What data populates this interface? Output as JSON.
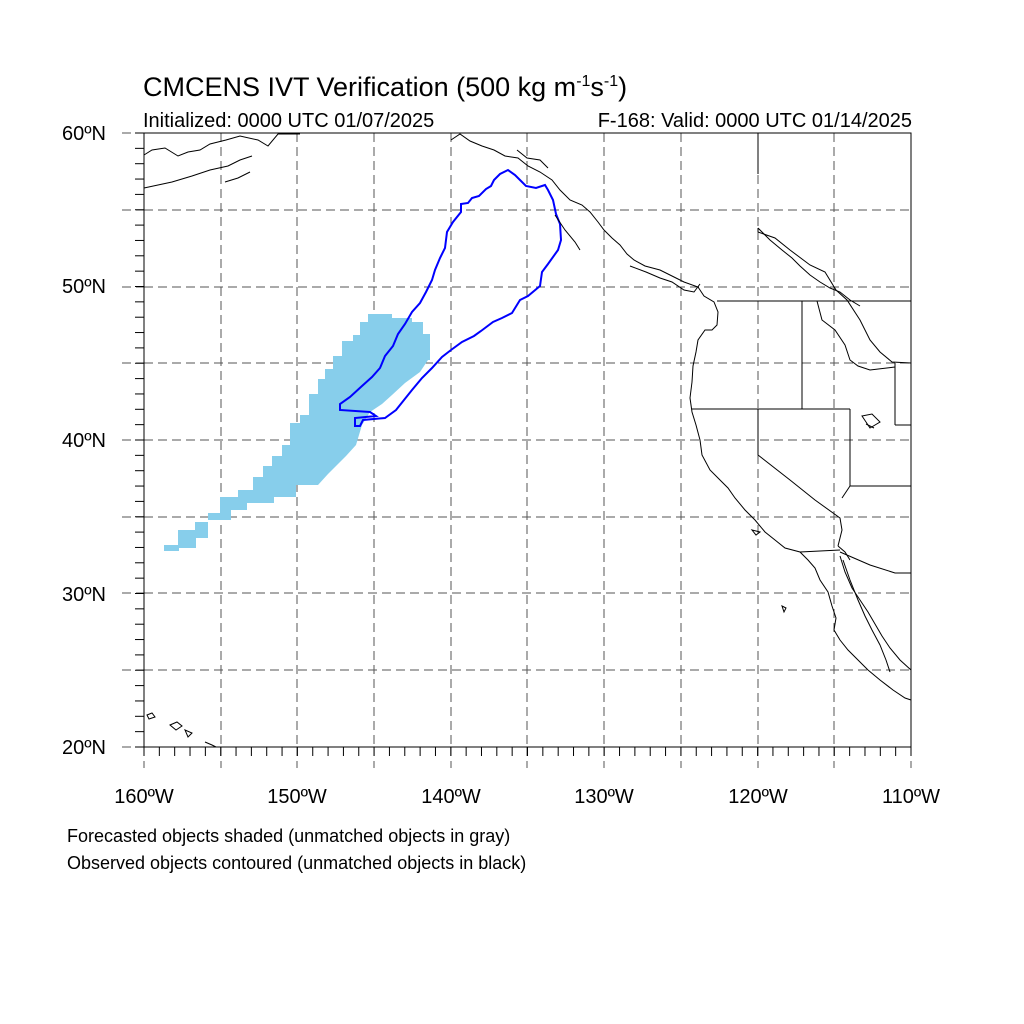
{
  "title": "CMCENS IVT Verification",
  "title_units_prefix": "(500 kg m",
  "title_exp1": "-1",
  "title_mid": "s",
  "title_exp2": "-1",
  "title_units_suffix": ")",
  "initialized": "Initialized: 0000 UTC 01/07/2025",
  "valid": "F-168: Valid: 0000 UTC 01/14/2025",
  "lat_labels": [
    "60ºN",
    "50ºN",
    "40ºN",
    "30ºN",
    "20ºN"
  ],
  "lon_labels": [
    "160ºW",
    "150ºW",
    "140ºW",
    "130ºW",
    "120ºW",
    "110ºW"
  ],
  "footnote1": "Forecasted objects shaded (unmatched objects in gray)",
  "footnote2": "Observed objects contoured (unmatched objects in black)",
  "colors": {
    "forecast_fill": "#87ceeb",
    "observed_contour": "#0000ff",
    "coastline": "#000000",
    "grid": "#555555"
  },
  "map_extent": {
    "lon": [
      -160,
      -110
    ],
    "lat": [
      20,
      60
    ]
  }
}
